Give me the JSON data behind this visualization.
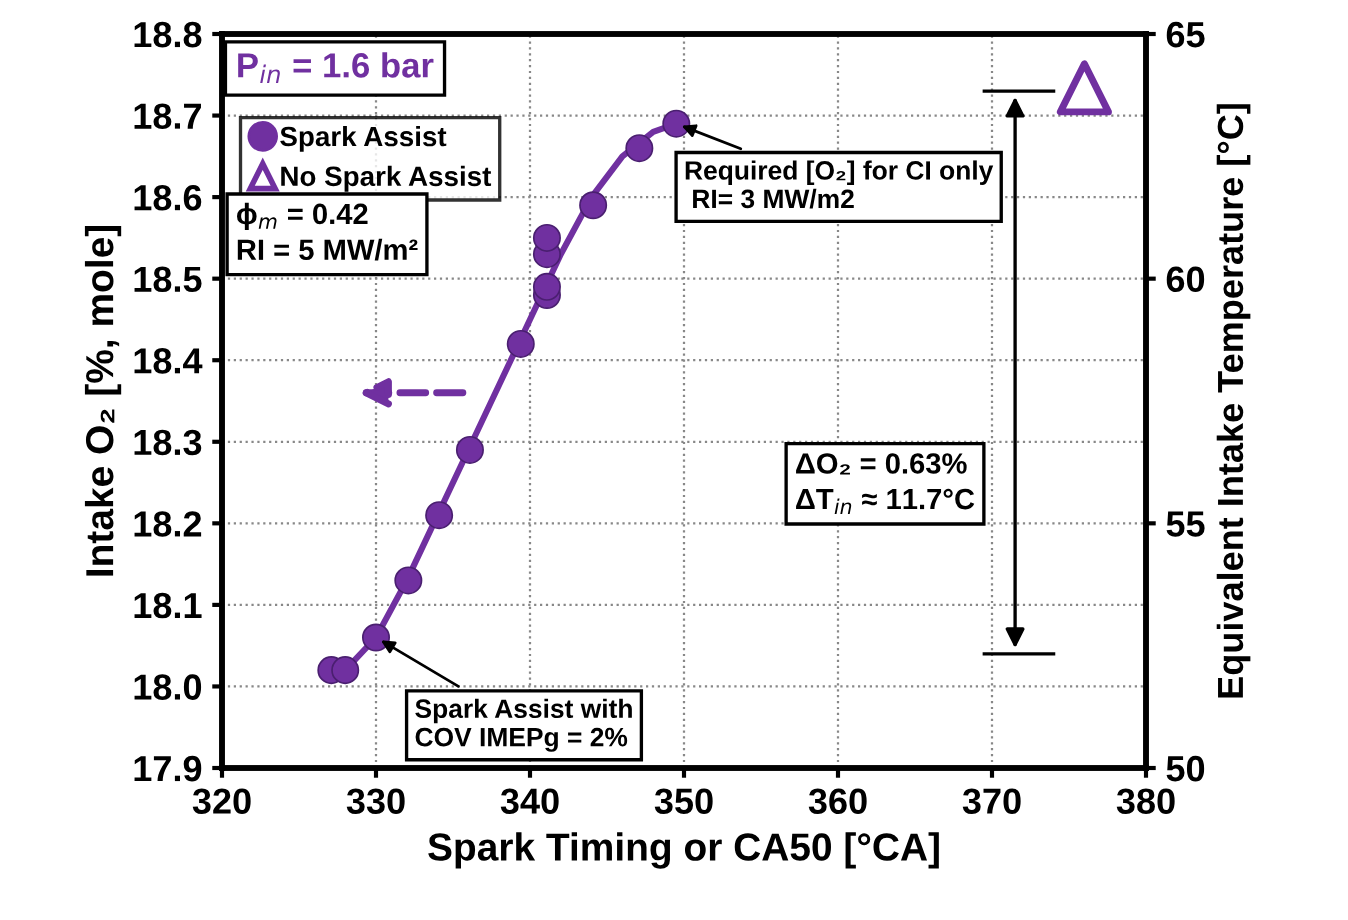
{
  "chart_data": {
    "type": "scatter",
    "xlabel": "Spark Timing or CA50 [°CA]",
    "ylabel": "Intake O₂ [%, mole]",
    "y2label": "Equivalent Intake Temperature [°C]",
    "xlim": [
      320,
      380
    ],
    "xticks": [
      320,
      330,
      340,
      350,
      360,
      370,
      380
    ],
    "ylim": [
      17.9,
      18.8
    ],
    "yticks": [
      {
        "value": 17.9,
        "label": "17.9"
      },
      {
        "value": 18.0,
        "label": "18.0"
      },
      {
        "value": 18.1,
        "label": "18.1"
      },
      {
        "value": 18.2,
        "label": "18.2"
      },
      {
        "value": 18.3,
        "label": "18.3"
      },
      {
        "value": 18.4,
        "label": "18.4"
      },
      {
        "value": 18.5,
        "label": "18.5"
      },
      {
        "value": 18.6,
        "label": "18.6"
      },
      {
        "value": 18.7,
        "label": "18.7"
      },
      {
        "value": 18.8,
        "label": "18.8"
      }
    ],
    "y2lim": [
      50,
      65
    ],
    "y2ticks": [
      50,
      55,
      60,
      65
    ],
    "grid": true,
    "legend": "top left",
    "series": [
      {
        "name": "Spark Assist",
        "marker": "circle",
        "color": "#7030a0",
        "x": [
          327.1,
          328.0,
          330.0,
          332.1,
          334.1,
          336.1,
          339.4,
          341.1,
          341.1,
          341.1,
          341.1,
          344.1,
          347.1,
          349.5
        ],
        "values": [
          18.02,
          18.02,
          18.06,
          18.13,
          18.21,
          18.29,
          18.42,
          18.48,
          18.49,
          18.53,
          18.55,
          18.59,
          18.66,
          18.69
        ]
      },
      {
        "type": "line",
        "marker": "none",
        "color": "#7030a0",
        "x": [
          328,
          330,
          332,
          334,
          336,
          338,
          340,
          342,
          344,
          346,
          348,
          349.5
        ],
        "values": [
          18.02,
          18.06,
          18.13,
          18.21,
          18.29,
          18.37,
          18.45,
          18.53,
          18.6,
          18.65,
          18.68,
          18.69
        ]
      },
      {
        "name": "No Spark Assist",
        "marker": "triangle",
        "color": "#7030a0",
        "axis": "y2",
        "x": [
          376
        ],
        "values": [
          63.9
        ]
      }
    ],
    "annotations": [
      "P$_{in}$ = 1.6 bar",
      "ϕ$_{m}$ = 0.42\nRI = 5 MW/m²",
      {
        "text": "Required [O₂] for CI only\n RI= 3 MW/m2",
        "x": 349.5,
        "y": 18.69
      },
      {
        "text": "Spark Assist with\nCOV IMEPg = 2%",
        "x": 330.0,
        "y": 18.06
      },
      "ΔO₂ = 0.63%\nΔT$_{in}$ ≈ 11.7°C"
    ]
  }
}
